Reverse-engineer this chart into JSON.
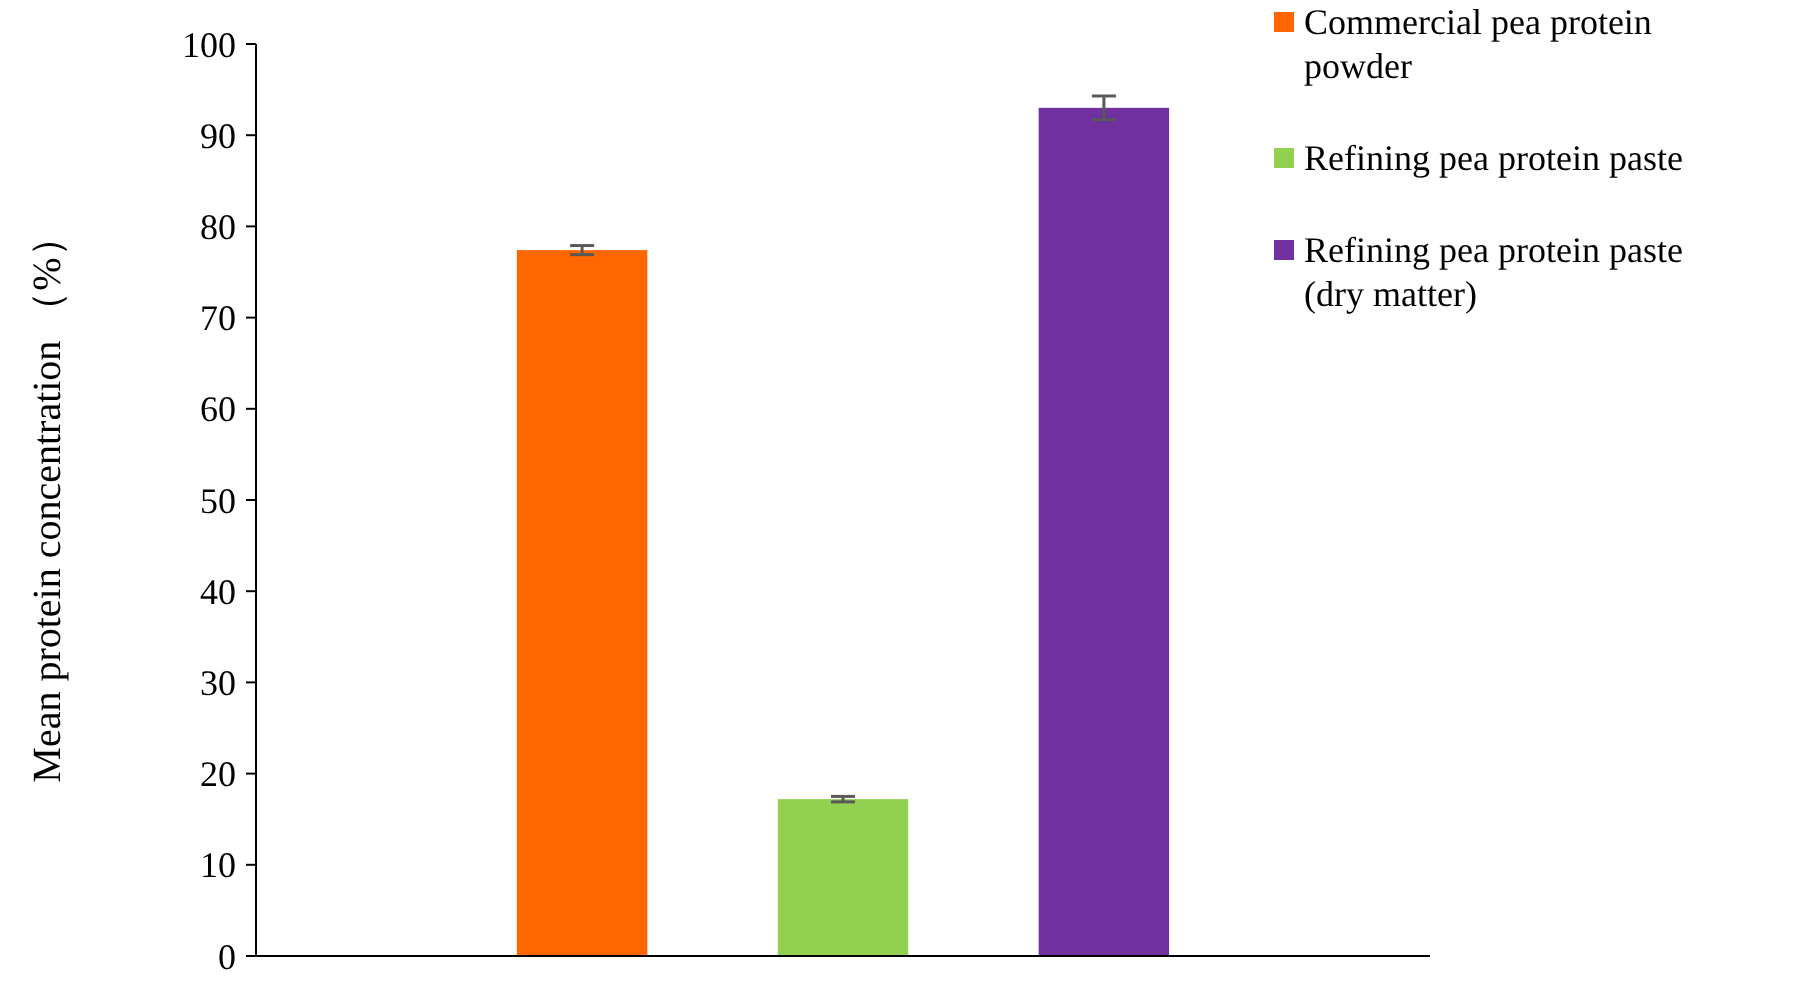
{
  "chart_data": {
    "type": "bar",
    "ylabel": "Mean protein concentration （%）",
    "categories": [
      null
    ],
    "series": [
      {
        "name": "Commercial pea protein powder",
        "color": "#ff6600",
        "values": [
          77.4
        ],
        "errors": [
          0.5
        ]
      },
      {
        "name": "Refining pea protein paste",
        "color": "#92d050",
        "values": [
          17.2
        ],
        "errors": [
          0.3
        ]
      },
      {
        "name": "Refining pea protein paste (dry matter)",
        "color": "#7030a0",
        "values": [
          93.0
        ],
        "errors": [
          1.3
        ]
      }
    ],
    "ylim": [
      0,
      100
    ],
    "yticks": [
      0,
      10,
      20,
      30,
      40,
      50,
      60,
      70,
      80,
      90,
      100
    ],
    "grid": false,
    "legend": "top right"
  }
}
